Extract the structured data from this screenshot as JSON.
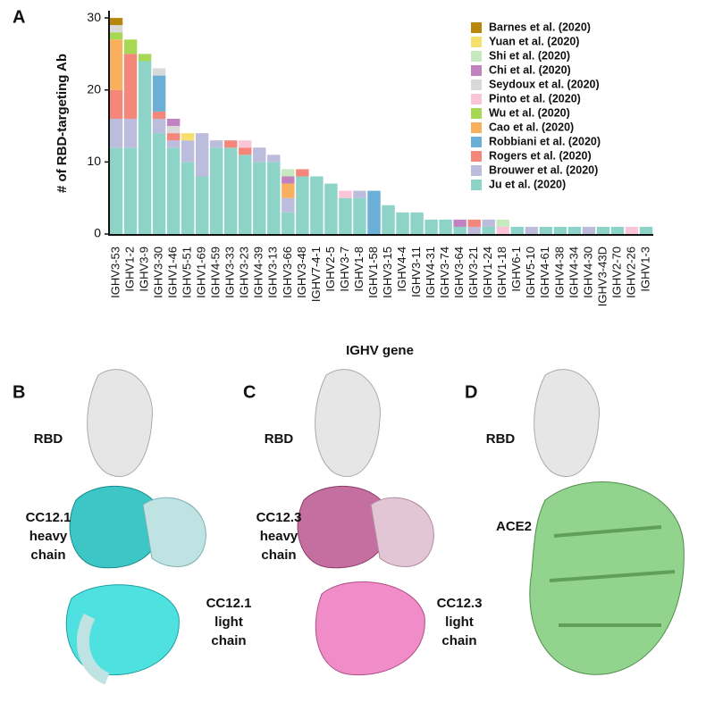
{
  "chart_data": {
    "type": "stacked_bar",
    "panel": "A",
    "ylabel": "# of RBD-targeting Ab",
    "xlabel": "IGHV gene",
    "ylim": [
      0,
      31
    ],
    "yticks": [
      0,
      10,
      20,
      30
    ],
    "legend": "top-right",
    "categories": [
      "IGHV3-53",
      "IGHV1-2",
      "IGHV3-9",
      "IGHV3-30",
      "IGHV1-46",
      "IGHV5-51",
      "IGHV1-69",
      "IGHV4-59",
      "IGHV3-33",
      "IGHV3-23",
      "IGHV4-39",
      "IGHV3-13",
      "IGHV3-66",
      "IGHV3-48",
      "IGHV7-4-1",
      "IGHV2-5",
      "IGHV3-7",
      "IGHV1-8",
      "IGHV1-58",
      "IGHV3-15",
      "IGHV4-4",
      "IGHV3-11",
      "IGHV4-31",
      "IGHV3-74",
      "IGHV3-64",
      "IGHV3-21",
      "IGHV1-24",
      "IGHV1-18",
      "IGHV6-1",
      "IGHV5-10",
      "IGHV4-61",
      "IGHV4-38",
      "IGHV4-34",
      "IGHV4-30",
      "IGHV3-43D",
      "IGHV2-70",
      "IGHV2-26",
      "IGHV1-3"
    ],
    "series": [
      {
        "name": "Ju et al. (2020)",
        "color": "#8dd3c7",
        "values": [
          12,
          12,
          24,
          14,
          12,
          10,
          8,
          12,
          12,
          11,
          10,
          10,
          3,
          8,
          8,
          7,
          5,
          5,
          0,
          4,
          3,
          3,
          2,
          2,
          1,
          0,
          1,
          0,
          1,
          0,
          1,
          1,
          1,
          0,
          1,
          1,
          0,
          1
        ]
      },
      {
        "name": "Brouwer et al. (2020)",
        "color": "#bcbddc",
        "values": [
          4,
          4,
          0,
          2,
          1,
          3,
          6,
          1,
          0,
          0,
          2,
          1,
          2,
          0,
          0,
          0,
          0,
          1,
          0,
          0,
          0,
          0,
          0,
          0,
          0,
          1,
          1,
          0,
          0,
          1,
          0,
          0,
          0,
          1,
          0,
          0,
          0,
          0
        ]
      },
      {
        "name": "Rogers et al. (2020)",
        "color": "#f4877a",
        "values": [
          4,
          9,
          0,
          1,
          1,
          0,
          0,
          0,
          1,
          1,
          0,
          0,
          0,
          1,
          0,
          0,
          0,
          0,
          0,
          0,
          0,
          0,
          0,
          0,
          0,
          1,
          0,
          0,
          0,
          0,
          0,
          0,
          0,
          0,
          0,
          0,
          0,
          0
        ]
      },
      {
        "name": "Robbiani et al. (2020)",
        "color": "#6baed6",
        "values": [
          0,
          0,
          0,
          5,
          0,
          0,
          0,
          0,
          0,
          0,
          0,
          0,
          0,
          0,
          0,
          0,
          0,
          0,
          6,
          0,
          0,
          0,
          0,
          0,
          0,
          0,
          0,
          0,
          0,
          0,
          0,
          0,
          0,
          0,
          0,
          0,
          0,
          0
        ]
      },
      {
        "name": "Cao et al. (2020)",
        "color": "#f8b05f",
        "values": [
          7,
          0,
          0,
          0,
          0,
          0,
          0,
          0,
          0,
          0,
          0,
          0,
          2,
          0,
          0,
          0,
          0,
          0,
          0,
          0,
          0,
          0,
          0,
          0,
          0,
          0,
          0,
          0,
          0,
          0,
          0,
          0,
          0,
          0,
          0,
          0,
          0,
          0
        ]
      },
      {
        "name": "Wu et al. (2020)",
        "color": "#a6d854",
        "values": [
          1,
          2,
          1,
          0,
          0,
          0,
          0,
          0,
          0,
          0,
          0,
          0,
          0,
          0,
          0,
          0,
          0,
          0,
          0,
          0,
          0,
          0,
          0,
          0,
          0,
          0,
          0,
          0,
          0,
          0,
          0,
          0,
          0,
          0,
          0,
          0,
          0,
          0
        ]
      },
      {
        "name": "Pinto et al. (2020)",
        "color": "#fbc5d8",
        "values": [
          0,
          0,
          0,
          0,
          0,
          0,
          0,
          0,
          0,
          1,
          0,
          0,
          0,
          0,
          0,
          0,
          1,
          0,
          0,
          0,
          0,
          0,
          0,
          0,
          0,
          0,
          0,
          1,
          0,
          0,
          0,
          0,
          0,
          0,
          0,
          0,
          1,
          0
        ]
      },
      {
        "name": "Seydoux et al. (2020)",
        "color": "#d9d9d9",
        "values": [
          1,
          0,
          0,
          1,
          1,
          0,
          0,
          0,
          0,
          0,
          0,
          0,
          0,
          0,
          0,
          0,
          0,
          0,
          0,
          0,
          0,
          0,
          0,
          0,
          0,
          0,
          0,
          0,
          0,
          0,
          0,
          0,
          0,
          0,
          0,
          0,
          0,
          0
        ]
      },
      {
        "name": "Chi et al. (2020)",
        "color": "#c083c0",
        "values": [
          0,
          0,
          0,
          0,
          1,
          0,
          0,
          0,
          0,
          0,
          0,
          0,
          1,
          0,
          0,
          0,
          0,
          0,
          0,
          0,
          0,
          0,
          0,
          0,
          1,
          0,
          0,
          0,
          0,
          0,
          0,
          0,
          0,
          0,
          0,
          0,
          0,
          0
        ]
      },
      {
        "name": "Shi et al. (2020)",
        "color": "#c7e9c0",
        "values": [
          0,
          0,
          0,
          0,
          0,
          0,
          0,
          0,
          0,
          0,
          0,
          0,
          1,
          0,
          0,
          0,
          0,
          0,
          0,
          0,
          0,
          0,
          0,
          0,
          0,
          0,
          0,
          1,
          0,
          0,
          0,
          0,
          0,
          0,
          0,
          0,
          0,
          0
        ]
      },
      {
        "name": "Yuan et al. (2020)",
        "color": "#f5e06e",
        "values": [
          0,
          0,
          0,
          0,
          0,
          1,
          0,
          0,
          0,
          0,
          0,
          0,
          0,
          0,
          0,
          0,
          0,
          0,
          0,
          0,
          0,
          0,
          0,
          0,
          0,
          0,
          0,
          0,
          0,
          0,
          0,
          0,
          0,
          0,
          0,
          0,
          0,
          0
        ]
      },
      {
        "name": "Barnes et al. (2020)",
        "color": "#b8860b",
        "values": [
          1,
          0,
          0,
          0,
          0,
          0,
          0,
          0,
          0,
          0,
          0,
          0,
          0,
          0,
          0,
          0,
          0,
          0,
          0,
          0,
          0,
          0,
          0,
          0,
          0,
          0,
          0,
          0,
          0,
          0,
          0,
          0,
          0,
          0,
          0,
          0,
          0,
          0
        ]
      }
    ]
  },
  "panels": [
    {
      "letter": "B",
      "top_label": "RBD",
      "upper_label": [
        "CC12.1",
        "heavy",
        "chain"
      ],
      "lower_label": [
        "CC12.1",
        "light",
        "chain"
      ]
    },
    {
      "letter": "C",
      "top_label": "RBD",
      "upper_label": [
        "CC12.3",
        "heavy",
        "chain"
      ],
      "lower_label": [
        "CC12.3",
        "light",
        "chain"
      ]
    },
    {
      "letter": "D",
      "top_label": "RBD",
      "upper_label": [
        "ACE2"
      ]
    }
  ]
}
